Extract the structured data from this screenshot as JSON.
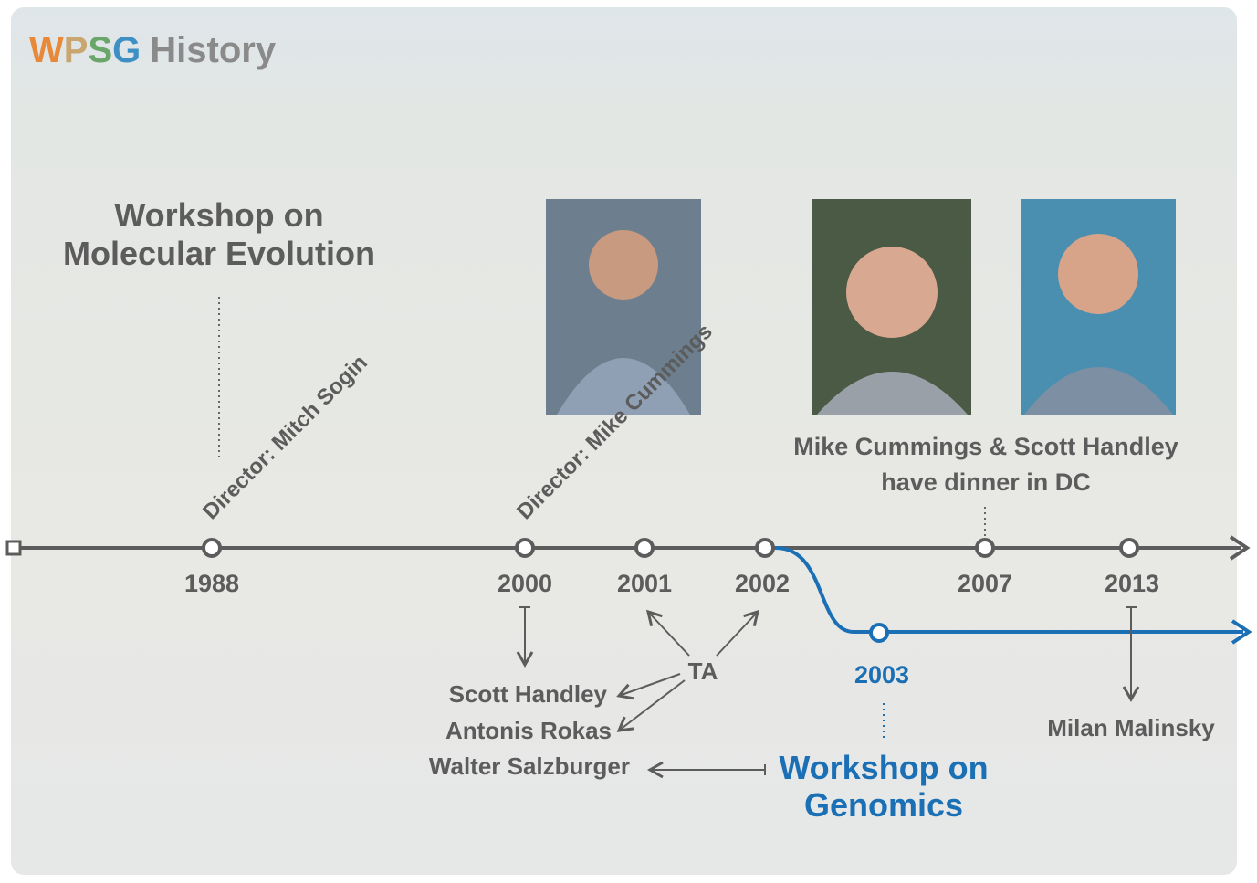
{
  "header": {
    "title_parts": [
      "W",
      "P",
      "S",
      "G",
      "History"
    ]
  },
  "events": {
    "molecular_evolution": [
      "Workshop on",
      "Molecular Evolution"
    ],
    "director_1988": "Director: Mitch Sogin",
    "director_2000": "Director: Mike Cummings",
    "dinner": [
      "Mike Cummings & Scott Handley",
      "have dinner in DC"
    ],
    "genomics": [
      "Workshop on",
      "Genomics"
    ]
  },
  "years": [
    "1988",
    "2000",
    "2001",
    "2002",
    "2007",
    "2013",
    "2003"
  ],
  "people": {
    "scott": "Scott Handley",
    "antonis": "Antonis Rokas",
    "walter": "Walter Salzburger",
    "ta": "TA",
    "milan": "Milan Malinsky"
  }
}
